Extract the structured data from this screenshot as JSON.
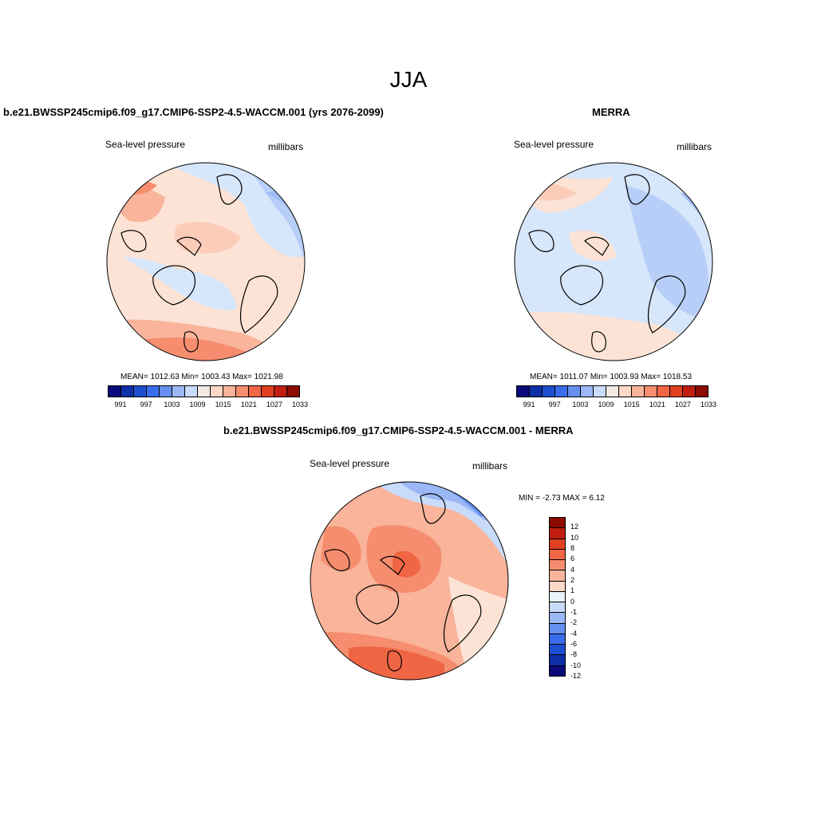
{
  "figure": {
    "title": "JJA"
  },
  "panels": {
    "model": {
      "title": "b.e21.BWSSP245cmip6.f09_g17.CMIP6-SSP2-4.5-WACCM.001 (yrs 2076-2099)",
      "variable": "Sea-level pressure",
      "units": "millibars",
      "stats": "MEAN= 1012.63  Min= 1003.43  Max= 1021.98"
    },
    "obs": {
      "title": "MERRA",
      "variable": "Sea-level pressure",
      "units": "millibars",
      "stats": "MEAN= 1011.07  Min= 1003.93  Max= 1018.53"
    },
    "diff": {
      "title": "b.e21.BWSSP245cmip6.f09_g17.CMIP6-SSP2-4.5-WACCM.001 - MERRA",
      "variable": "Sea-level pressure",
      "units": "millibars",
      "stats": "MIN =  -2.73 MAX =   6.12"
    }
  },
  "colorbars": {
    "abs": {
      "colors": [
        "#0a0a7a",
        "#0d2fa8",
        "#1f4fd1",
        "#3a6cec",
        "#6690f0",
        "#9bb7f5",
        "#c9dbfa",
        "#f4eae4",
        "#fcd8c6",
        "#f9b49b",
        "#f58d6e",
        "#f06644",
        "#e0401f",
        "#c01e10",
        "#8a0b00"
      ],
      "labels": [
        "991",
        "997",
        "1003",
        "1009",
        "1015",
        "1021",
        "1027",
        "1033"
      ]
    },
    "diff": {
      "colors": [
        "#8a0b00",
        "#c01e10",
        "#e0401f",
        "#f06644",
        "#f58d6e",
        "#f9b49b",
        "#fcd8c6",
        "#eaf2fc",
        "#c9dbfa",
        "#9bb7f5",
        "#6690f0",
        "#3a6cec",
        "#1f4fd1",
        "#0d2fa8",
        "#0a0a7a"
      ],
      "labels": [
        "12",
        "10",
        "8",
        "6",
        "4",
        "2",
        "1",
        "0",
        "-1",
        "-2",
        "-4",
        "-6",
        "-8",
        "-10",
        "-12"
      ]
    }
  }
}
